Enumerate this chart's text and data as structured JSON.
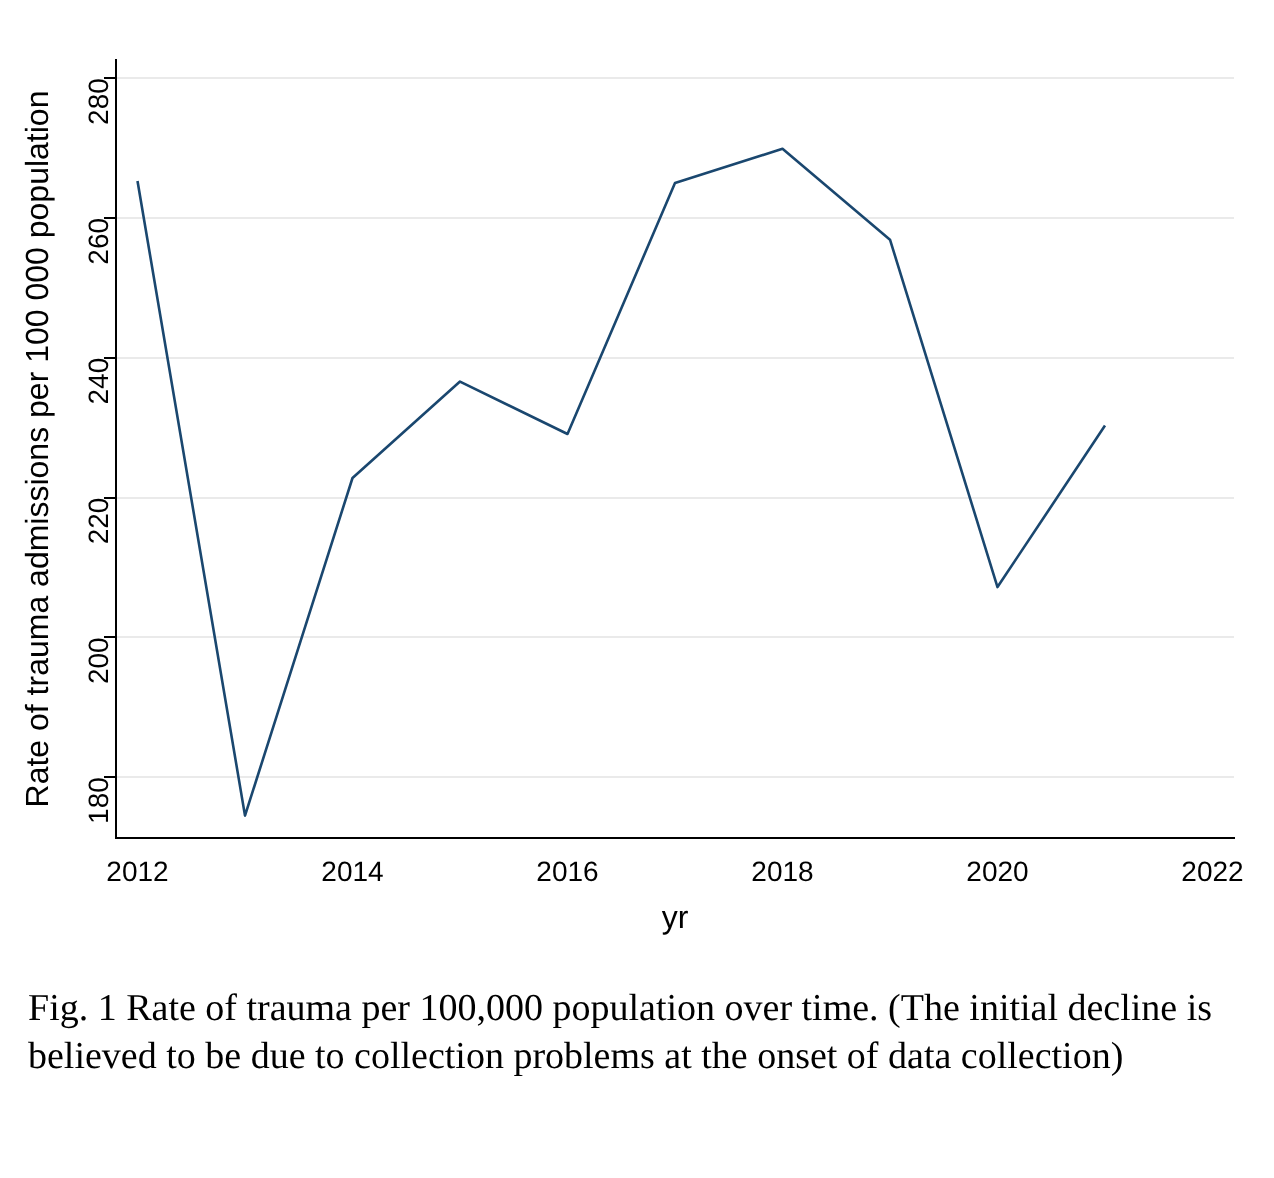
{
  "chart_data": {
    "type": "line",
    "xlabel": "yr",
    "ylabel": "Rate of trauma admissions per 100 000 population",
    "x": [
      2012,
      2013,
      2014,
      2015,
      2016,
      2017,
      2018,
      2019,
      2020,
      2021
    ],
    "series": [
      {
        "color": "#1a476f",
        "values": [
          265.3,
          174.5,
          222.8,
          236.6,
          229.1,
          265,
          269.9,
          256.9,
          207.2,
          230.3
        ]
      }
    ],
    "xlim": [
      2011.8,
      2022.2
    ],
    "xticks": [
      2012,
      2014,
      2016,
      2018,
      2020,
      2022
    ],
    "ylim": [
      171.3,
      282.6
    ],
    "yticks": [
      180,
      200,
      220,
      240,
      260,
      280
    ],
    "grid": "y",
    "legend": false,
    "marker": "none",
    "line_style": "solid",
    "annotations": [
      "Fig. 1 Rate of trauma per 100,000 population over time. (The initial decline is believed to be due to collection problems at the onset of data collection)"
    ]
  }
}
